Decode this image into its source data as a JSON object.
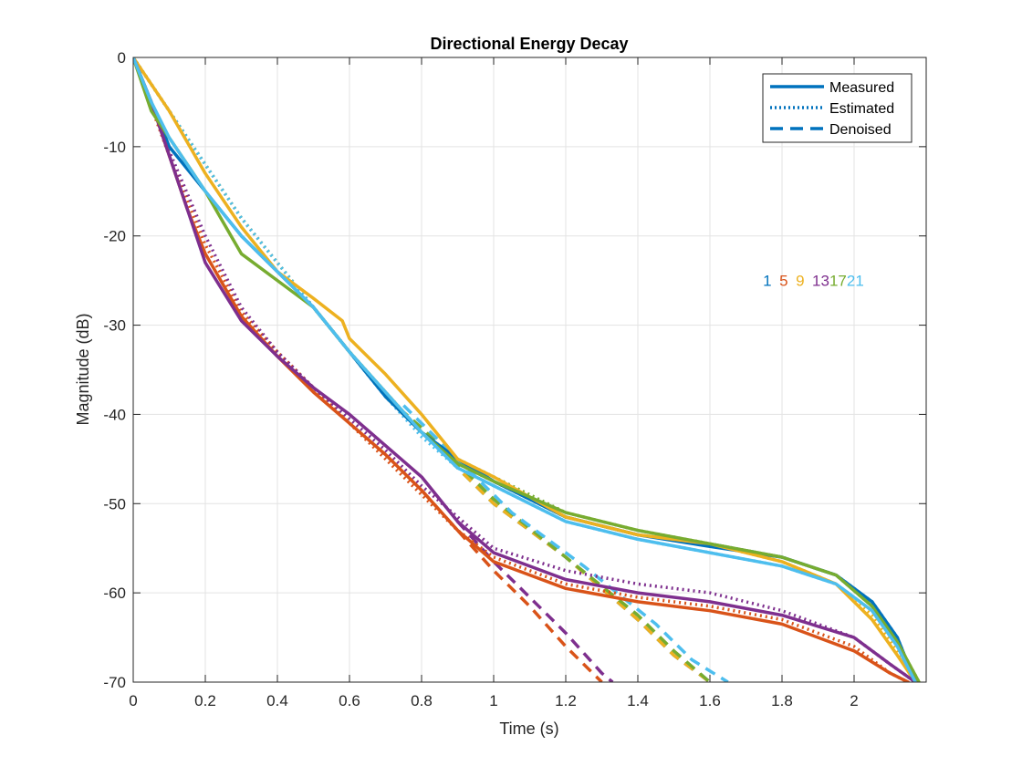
{
  "chart_data": {
    "type": "line",
    "title": "Directional Energy Decay",
    "xlabel": "Time (s)",
    "ylabel": "Magnitude (dB)",
    "xlim": [
      0,
      2.2
    ],
    "ylim": [
      -70,
      0
    ],
    "xticks": [
      0,
      0.2,
      0.4,
      0.6,
      0.8,
      1,
      1.2,
      1.4,
      1.6,
      1.8,
      2
    ],
    "xtick_labels": [
      "0",
      "0.2",
      "0.4",
      "0.6",
      "0.8",
      "1",
      "1.2",
      "1.4",
      "1.6",
      "1.8",
      "2"
    ],
    "yticks": [
      0,
      -10,
      -20,
      -30,
      -40,
      -50,
      -60,
      -70
    ],
    "ytick_labels": [
      "0",
      "-10",
      "-20",
      "-30",
      "-40",
      "-50",
      "-60",
      "-70"
    ],
    "grid": true,
    "legend": {
      "placement": "top-right",
      "entries": [
        {
          "label": "Measured",
          "style": "solid"
        },
        {
          "label": "Estimated",
          "style": "dotted"
        },
        {
          "label": "Denoised",
          "style": "dashed"
        }
      ]
    },
    "direction_labels": [
      {
        "text": "1",
        "color": "#0072BD"
      },
      {
        "text": "5",
        "color": "#D95319"
      },
      {
        "text": "9",
        "color": "#EDB120"
      },
      {
        "text": "13",
        "color": "#7E2F8E"
      },
      {
        "text": "17",
        "color": "#77AC30"
      },
      {
        "text": "21",
        "color": "#4DBEEE"
      }
    ],
    "direction_label_position": {
      "x": 1.77,
      "y": -25
    },
    "series": [
      {
        "direction": "1",
        "color": "#0072BD",
        "measured": {
          "x": [
            0,
            0.05,
            0.1,
            0.2,
            0.3,
            0.4,
            0.5,
            0.6,
            0.7,
            0.8,
            0.9,
            1.0,
            1.2,
            1.4,
            1.6,
            1.8,
            1.95,
            2.05,
            2.12,
            2.17
          ],
          "y": [
            0,
            -5,
            -10,
            -15,
            -20,
            -24,
            -28,
            -33,
            -38,
            -42,
            -45,
            -47.5,
            -51.5,
            -53.5,
            -54.8,
            -56,
            -58,
            -61,
            -65,
            -70
          ]
        },
        "estimated": {
          "x": [
            0,
            0.1,
            0.2,
            0.3,
            0.4,
            0.5,
            0.6,
            0.7,
            0.8,
            0.9,
            1.0,
            1.2,
            1.4,
            1.6,
            1.8,
            1.95,
            2.05,
            2.12,
            2.17
          ],
          "y": [
            0,
            -6,
            -12,
            -18,
            -23,
            -28,
            -33,
            -38,
            -42,
            -45.5,
            -47.5,
            -51.5,
            -53.5,
            -54.5,
            -56,
            -58,
            -61,
            -65,
            -70
          ]
        },
        "denoised": {
          "x": [
            0.7,
            0.8,
            0.9,
            1.0,
            1.2,
            1.4,
            1.5,
            1.6
          ],
          "y": [
            -38,
            -42,
            -46,
            -50,
            -56,
            -63,
            -67,
            -70
          ]
        }
      },
      {
        "direction": "5",
        "color": "#D95319",
        "measured": {
          "x": [
            0,
            0.05,
            0.1,
            0.15,
            0.2,
            0.3,
            0.4,
            0.5,
            0.6,
            0.7,
            0.8,
            0.9,
            1.0,
            1.2,
            1.4,
            1.6,
            1.8,
            2.0,
            2.1,
            2.15
          ],
          "y": [
            0,
            -5,
            -11,
            -17,
            -22,
            -29,
            -33.5,
            -37.5,
            -41,
            -44.5,
            -48.5,
            -53,
            -56.5,
            -59.5,
            -61,
            -62,
            -63.5,
            -66.5,
            -69,
            -70
          ]
        },
        "estimated": {
          "x": [
            0,
            0.1,
            0.2,
            0.3,
            0.4,
            0.5,
            0.6,
            0.7,
            0.8,
            0.9,
            1.0,
            1.2,
            1.4,
            1.6,
            1.8,
            2.0,
            2.1,
            2.15
          ],
          "y": [
            0,
            -11,
            -21,
            -28.5,
            -33,
            -37,
            -41,
            -45,
            -49,
            -53,
            -56,
            -59,
            -60.5,
            -61.5,
            -63,
            -66,
            -69,
            -70
          ]
        },
        "denoised": {
          "x": [
            0.8,
            0.9,
            1.0,
            1.1,
            1.2,
            1.3
          ],
          "y": [
            -48.5,
            -53,
            -57.5,
            -61.5,
            -66,
            -70
          ]
        }
      },
      {
        "direction": "9",
        "color": "#EDB120",
        "measured": {
          "x": [
            0,
            0.1,
            0.2,
            0.3,
            0.4,
            0.5,
            0.58,
            0.6,
            0.7,
            0.8,
            0.9,
            1.0,
            1.2,
            1.4,
            1.6,
            1.8,
            1.95,
            2.05,
            2.12,
            2.17
          ],
          "y": [
            0,
            -6,
            -13,
            -19,
            -24,
            -27,
            -29.5,
            -31.5,
            -35.5,
            -40,
            -45,
            -47,
            -51.5,
            -53.5,
            -54.5,
            -56.5,
            -59,
            -63,
            -67,
            -70
          ]
        },
        "estimated": {
          "x": [
            0,
            0.1,
            0.2,
            0.3,
            0.4,
            0.5,
            0.6,
            0.7,
            0.8,
            0.9,
            1.0,
            1.2,
            1.4,
            1.6,
            1.8,
            1.95,
            2.05,
            2.12,
            2.17
          ],
          "y": [
            0,
            -6,
            -12,
            -18,
            -23,
            -28,
            -33,
            -37.5,
            -42,
            -45.5,
            -47.5,
            -51.5,
            -53.5,
            -54.5,
            -56.5,
            -59,
            -62.5,
            -66.5,
            -70
          ]
        },
        "denoised": {
          "x": [
            0.7,
            0.8,
            0.9,
            1.0,
            1.2,
            1.4,
            1.5,
            1.6
          ],
          "y": [
            -38,
            -42,
            -46,
            -50,
            -56,
            -63,
            -67,
            -70
          ]
        }
      },
      {
        "direction": "13",
        "color": "#7E2F8E",
        "measured": {
          "x": [
            0,
            0.05,
            0.1,
            0.15,
            0.2,
            0.3,
            0.4,
            0.5,
            0.6,
            0.7,
            0.8,
            0.9,
            1.0,
            1.2,
            1.4,
            1.6,
            1.8,
            2.0,
            2.1,
            2.17
          ],
          "y": [
            0,
            -5,
            -11,
            -17,
            -23,
            -29.5,
            -33.5,
            -37,
            -40,
            -43.5,
            -47,
            -52,
            -55.5,
            -58.5,
            -60,
            -61,
            -62.5,
            -65,
            -68,
            -70
          ]
        },
        "estimated": {
          "x": [
            0,
            0.1,
            0.2,
            0.3,
            0.4,
            0.5,
            0.6,
            0.7,
            0.8,
            0.9,
            1.0,
            1.2,
            1.4,
            1.6,
            1.8,
            2.0,
            2.1,
            2.17
          ],
          "y": [
            0,
            -10.5,
            -20,
            -28,
            -33,
            -37,
            -40.5,
            -44,
            -48,
            -51.5,
            -55,
            -57.5,
            -59,
            -60,
            -62,
            -65,
            -68,
            -70
          ]
        },
        "denoised": {
          "x": [
            0.9,
            1.0,
            1.1,
            1.2,
            1.3,
            1.33
          ],
          "y": [
            -52,
            -56.5,
            -60.5,
            -64.5,
            -69,
            -70
          ]
        }
      },
      {
        "direction": "17",
        "color": "#77AC30",
        "measured": {
          "x": [
            0,
            0.05,
            0.1,
            0.15,
            0.2,
            0.3,
            0.4,
            0.5,
            0.6,
            0.7,
            0.8,
            0.9,
            1.0,
            1.2,
            1.4,
            1.6,
            1.8,
            1.95,
            2.05,
            2.12,
            2.18
          ],
          "y": [
            0,
            -6,
            -9,
            -12,
            -15,
            -22,
            -25,
            -28,
            -33,
            -37.5,
            -42,
            -45.5,
            -47.5,
            -51,
            -53,
            -54.5,
            -56,
            -58,
            -61.5,
            -65.5,
            -70
          ]
        },
        "estimated": {
          "x": [
            0,
            0.1,
            0.2,
            0.3,
            0.4,
            0.5,
            0.6,
            0.7,
            0.8,
            0.9,
            1.0,
            1.2,
            1.4,
            1.6,
            1.8,
            1.95,
            2.05,
            2.12,
            2.18
          ],
          "y": [
            0,
            -6,
            -12,
            -18,
            -23,
            -28,
            -33,
            -37.5,
            -42,
            -45,
            -47,
            -51,
            -53,
            -54.5,
            -56,
            -58,
            -61.5,
            -65.5,
            -70
          ]
        },
        "denoised": {
          "x": [
            0.7,
            0.8,
            0.9,
            1.0,
            1.2,
            1.4,
            1.5,
            1.6
          ],
          "y": [
            -38,
            -41.5,
            -45.5,
            -49.5,
            -56,
            -62.5,
            -66.5,
            -70
          ]
        }
      },
      {
        "direction": "21",
        "color": "#4DBEEE",
        "measured": {
          "x": [
            0,
            0.05,
            0.1,
            0.2,
            0.3,
            0.4,
            0.5,
            0.6,
            0.7,
            0.8,
            0.9,
            1.0,
            1.2,
            1.4,
            1.6,
            1.8,
            1.95,
            2.05,
            2.12,
            2.17
          ],
          "y": [
            0,
            -5,
            -9,
            -15,
            -20,
            -24,
            -28,
            -33,
            -37.5,
            -42,
            -46,
            -48,
            -52,
            -54,
            -55.5,
            -57,
            -59,
            -62,
            -66,
            -70
          ]
        },
        "estimated": {
          "x": [
            0,
            0.1,
            0.2,
            0.3,
            0.4,
            0.5,
            0.6,
            0.7,
            0.8,
            0.9,
            1.0,
            1.2,
            1.4,
            1.6,
            1.8,
            1.95,
            2.05,
            2.12,
            2.17
          ],
          "y": [
            0,
            -6,
            -12,
            -18,
            -23,
            -28,
            -33,
            -38,
            -42.5,
            -46,
            -48,
            -52,
            -54,
            -55.5,
            -57,
            -59,
            -62,
            -66,
            -70
          ]
        },
        "denoised": {
          "x": [
            0.75,
            0.85,
            0.95,
            1.05,
            1.25,
            1.45,
            1.55,
            1.65
          ],
          "y": [
            -39,
            -43,
            -47,
            -51,
            -57,
            -63.5,
            -67.5,
            -70
          ]
        }
      }
    ]
  }
}
